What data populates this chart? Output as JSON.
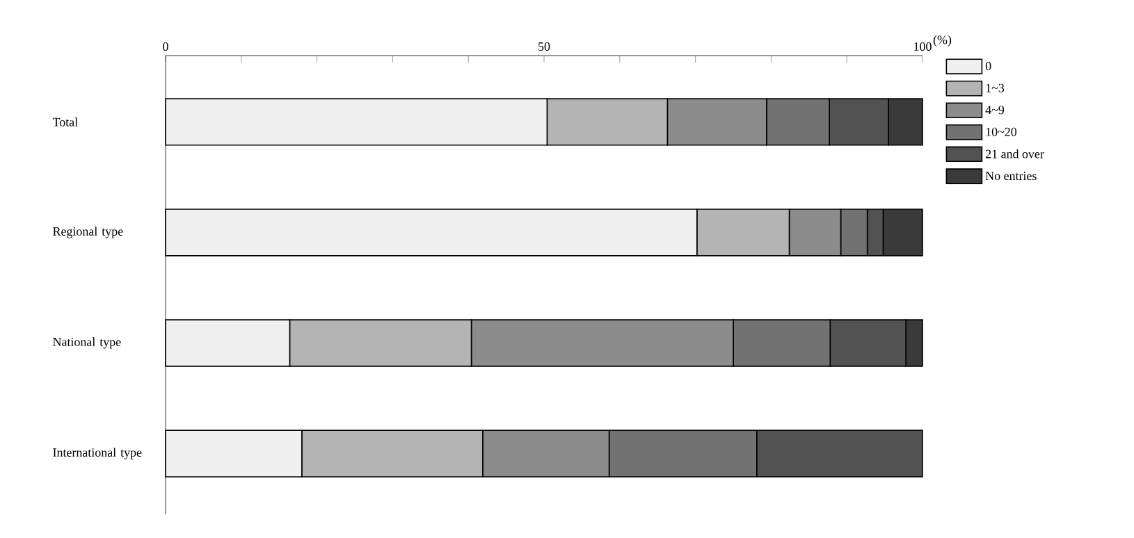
{
  "chart_data": {
    "type": "bar",
    "orientation": "horizontal",
    "stacked": true,
    "categories": [
      "Total",
      "Regional type",
      "National type",
      "International type"
    ],
    "xlabel": "(%)",
    "xlim": [
      0,
      100
    ],
    "xticks": [
      0,
      {
        "value": 10,
        "label": null
      },
      {
        "value": 20,
        "label": null
      },
      {
        "value": 30,
        "label": null
      },
      {
        "value": 40,
        "label": null
      },
      50,
      {
        "value": 60,
        "label": null
      },
      {
        "value": 70,
        "label": null
      },
      {
        "value": 80,
        "label": null
      },
      {
        "value": 90,
        "label": null
      },
      100
    ],
    "legend": "right",
    "series": [
      {
        "name": "0",
        "color": "#f0f0f0",
        "values": [
          50.4,
          70.2,
          16.4,
          18.0
        ]
      },
      {
        "name": "1~3",
        "color": "#b4b4b4",
        "values": [
          15.9,
          12.2,
          24.0,
          23.9
        ]
      },
      {
        "name": "4~9",
        "color": "#8c8c8c",
        "values": [
          13.1,
          6.8,
          34.6,
          16.7
        ]
      },
      {
        "name": "10~20",
        "color": "#727272",
        "values": [
          8.3,
          3.5,
          12.8,
          19.5
        ]
      },
      {
        "name": "21 and over",
        "color": "#525252",
        "values": [
          7.8,
          2.1,
          10.0,
          21.9
        ]
      },
      {
        "name": "No entries",
        "color": "#3a3a3a",
        "values": [
          4.5,
          5.2,
          2.2,
          0
        ]
      }
    ]
  }
}
